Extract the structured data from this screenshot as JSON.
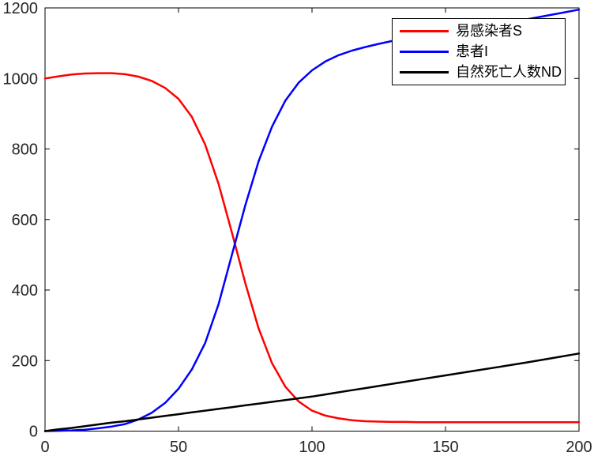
{
  "figure": {
    "background": "#ffffff",
    "axes_border_color": "#000000",
    "tick_label_color": "#262626"
  },
  "chart_data": {
    "type": "line",
    "title": "",
    "xlabel": "",
    "ylabel": "",
    "xlim": [
      0,
      200
    ],
    "ylim": [
      0,
      1200
    ],
    "xticks": [
      0,
      50,
      100,
      150,
      200
    ],
    "yticks": [
      0,
      200,
      400,
      600,
      800,
      1000,
      1200
    ],
    "grid": false,
    "legend_position": "top-right",
    "x": [
      0,
      5,
      10,
      15,
      20,
      25,
      30,
      35,
      40,
      45,
      50,
      55,
      60,
      65,
      70,
      75,
      80,
      85,
      90,
      95,
      100,
      105,
      110,
      115,
      120,
      125,
      130,
      135,
      140,
      150,
      160,
      170,
      180,
      190,
      200
    ],
    "series": [
      {
        "name": "易感染者S",
        "color": "#ff0000",
        "values": [
          1000,
          1006,
          1011,
          1014,
          1015,
          1015,
          1012,
          1005,
          993,
          973,
          942,
          891,
          812,
          701,
          563,
          420,
          291,
          193,
          126,
          84,
          58,
          44,
          36,
          31,
          28,
          27,
          26,
          26,
          25,
          25,
          25,
          25,
          25,
          25,
          25
        ]
      },
      {
        "name": "患者I",
        "color": "#0000ff",
        "values": [
          0,
          1,
          2,
          4,
          8,
          13,
          20,
          33,
          52,
          80,
          120,
          175,
          250,
          360,
          500,
          640,
          765,
          863,
          937,
          988,
          1023,
          1048,
          1066,
          1079,
          1089,
          1098,
          1106,
          1112,
          1117,
          1128,
          1140,
          1153,
          1167,
          1181,
          1195
        ]
      },
      {
        "name": "自然死亡人数ND",
        "color": "#000000",
        "values": [
          0,
          5,
          9,
          14,
          19,
          24,
          28,
          33,
          38,
          43,
          48,
          53,
          58,
          63,
          68,
          73,
          78,
          83,
          88,
          93,
          98,
          104,
          110,
          116,
          122,
          128,
          134,
          140,
          146,
          158,
          170,
          182,
          194,
          207,
          220
        ]
      }
    ]
  }
}
